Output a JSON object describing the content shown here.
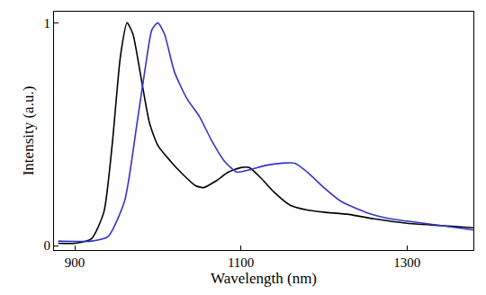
{
  "chart_data": {
    "type": "line",
    "x_label": "Wavelength (nm)",
    "y_label": "Intensity (a.u.)",
    "xlim": [
      875,
      1380
    ],
    "ylim": [
      -0.02,
      1.05
    ],
    "xticks": [
      900,
      1100,
      1300
    ],
    "yticks": [
      0,
      1
    ],
    "grid": false,
    "series": [
      {
        "color": "#000000",
        "x": [
          880,
          900,
          920,
          935,
          945,
          955,
          963,
          970,
          980,
          990,
          1000,
          1015,
          1030,
          1045,
          1055,
          1070,
          1085,
          1100,
          1110,
          1125,
          1140,
          1160,
          1180,
          1200,
          1230,
          1260,
          1300,
          1340,
          1380
        ],
        "values": [
          0.01,
          0.01,
          0.03,
          0.15,
          0.45,
          0.85,
          1.0,
          0.95,
          0.75,
          0.55,
          0.45,
          0.38,
          0.32,
          0.27,
          0.26,
          0.29,
          0.33,
          0.35,
          0.35,
          0.3,
          0.24,
          0.18,
          0.16,
          0.15,
          0.14,
          0.12,
          0.1,
          0.09,
          0.08
        ]
      },
      {
        "color": "#3333cc",
        "x": [
          880,
          920,
          940,
          960,
          975,
          985,
          993,
          1000,
          1008,
          1020,
          1035,
          1050,
          1065,
          1080,
          1095,
          1110,
          1130,
          1150,
          1165,
          1180,
          1200,
          1220,
          1250,
          1280,
          1300,
          1340,
          1380
        ],
        "values": [
          0.02,
          0.02,
          0.04,
          0.2,
          0.55,
          0.8,
          0.97,
          1.0,
          0.95,
          0.78,
          0.66,
          0.58,
          0.47,
          0.38,
          0.33,
          0.34,
          0.36,
          0.37,
          0.37,
          0.33,
          0.26,
          0.2,
          0.15,
          0.12,
          0.11,
          0.09,
          0.07
        ]
      }
    ]
  }
}
